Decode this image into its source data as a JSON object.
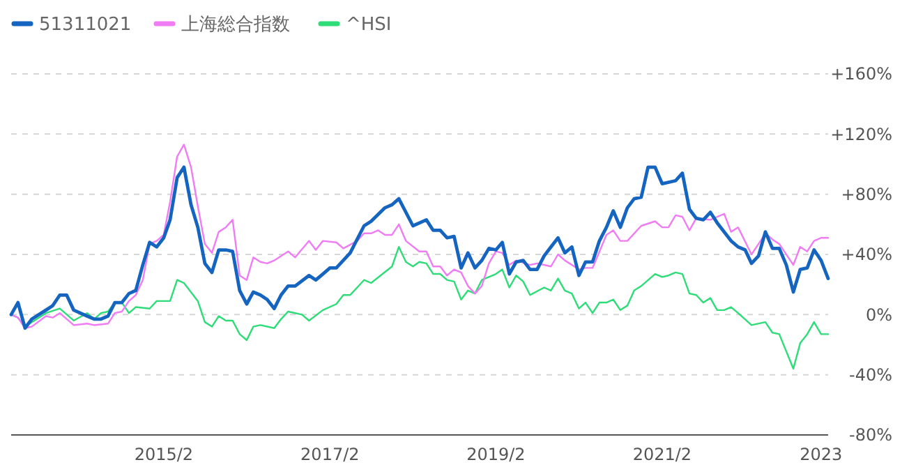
{
  "chart_data": {
    "type": "line",
    "xlim": [
      "2013-04",
      "2023-02"
    ],
    "xticks": [
      {
        "value": "2015-02",
        "label": "2015/2"
      },
      {
        "value": "2017-02",
        "label": "2017/2"
      },
      {
        "value": "2019-02",
        "label": "2019/2"
      },
      {
        "value": "2021-02",
        "label": "2021/2"
      },
      {
        "value": "2023-01",
        "label": "2023"
      }
    ],
    "ylim": [
      -80,
      160
    ],
    "yticks": [
      {
        "value": -80,
        "label": "-80%"
      },
      {
        "value": -40,
        "label": "-40%"
      },
      {
        "value": 0,
        "label": "0%"
      },
      {
        "value": 40,
        "label": "+40%"
      },
      {
        "value": 80,
        "label": "+80%"
      },
      {
        "value": 120,
        "label": "+120%"
      },
      {
        "value": 160,
        "label": "+160%"
      }
    ],
    "grid": "y",
    "legend": "top left",
    "series": [
      {
        "name": "51311021",
        "color": "#1565c0",
        "x": [
          "2013-04",
          "2013-05",
          "2013-06",
          "2013-07",
          "2013-09",
          "2013-10",
          "2013-11",
          "2013-12",
          "2014-01",
          "2014-03",
          "2014-04",
          "2014-05",
          "2014-06",
          "2014-07",
          "2014-08",
          "2014-09",
          "2014-10",
          "2014-11",
          "2014-12",
          "2015-01",
          "2015-02",
          "2015-03",
          "2015-04",
          "2015-05",
          "2015-06",
          "2015-07",
          "2015-08",
          "2015-09",
          "2015-10",
          "2015-11",
          "2015-12",
          "2016-01",
          "2016-02",
          "2016-03",
          "2016-04",
          "2016-05",
          "2016-06",
          "2016-07",
          "2016-08",
          "2016-09",
          "2016-11",
          "2016-12",
          "2017-01",
          "2017-02",
          "2017-03",
          "2017-05",
          "2017-07",
          "2017-08",
          "2017-10",
          "2017-11",
          "2017-12",
          "2018-02",
          "2018-04",
          "2018-05",
          "2018-06",
          "2018-07",
          "2018-08",
          "2018-09",
          "2018-10",
          "2018-11",
          "2018-12",
          "2019-01",
          "2019-02",
          "2019-03",
          "2019-04",
          "2019-05",
          "2019-06",
          "2019-07",
          "2019-08",
          "2019-09",
          "2019-10",
          "2019-11",
          "2019-12",
          "2020-01",
          "2020-02",
          "2020-03",
          "2020-04",
          "2020-05",
          "2020-06",
          "2020-07",
          "2020-08",
          "2020-09",
          "2020-10",
          "2020-11",
          "2020-12",
          "2021-01",
          "2021-02",
          "2021-04",
          "2021-05",
          "2021-06",
          "2021-07",
          "2021-08",
          "2021-09",
          "2021-10",
          "2021-12",
          "2022-01",
          "2022-02",
          "2022-03",
          "2022-04",
          "2022-05",
          "2022-06",
          "2022-07",
          "2022-08",
          "2022-09",
          "2022-10",
          "2022-11",
          "2022-12",
          "2023-01",
          "2023-02"
        ],
        "values": [
          0,
          8,
          -9,
          -3,
          3,
          6,
          13,
          13,
          3,
          -1,
          -3,
          -3,
          -1,
          8,
          8,
          14,
          16,
          33,
          48,
          45,
          51,
          63,
          91,
          98,
          73,
          58,
          34,
          28,
          43,
          43,
          42,
          16,
          7,
          15,
          13,
          10,
          4,
          13,
          19,
          19,
          26,
          23,
          27,
          31,
          31,
          41,
          59,
          62,
          71,
          73,
          77,
          59,
          63,
          56,
          56,
          51,
          52,
          31,
          41,
          31,
          36,
          44,
          43,
          48,
          27,
          35,
          36,
          30,
          30,
          39,
          45,
          51,
          41,
          45,
          26,
          35,
          35,
          49,
          58,
          69,
          58,
          71,
          77,
          78,
          98,
          98,
          87,
          89,
          94,
          70,
          64,
          63,
          68,
          61,
          49,
          45,
          43,
          34,
          39,
          55,
          44,
          44,
          33,
          15,
          30,
          31,
          43,
          36,
          24
        ]
      },
      {
        "name": "上海総合指数",
        "color": "#f07cf4",
        "x": [
          "2013-04",
          "2013-05",
          "2013-06",
          "2013-07",
          "2013-09",
          "2013-10",
          "2013-11",
          "2014-01",
          "2014-03",
          "2014-04",
          "2014-06",
          "2014-07",
          "2014-08",
          "2014-09",
          "2014-10",
          "2014-11",
          "2014-12",
          "2015-01",
          "2015-02",
          "2015-03",
          "2015-04",
          "2015-05",
          "2015-06",
          "2015-07",
          "2015-08",
          "2015-09",
          "2015-10",
          "2015-11",
          "2015-12",
          "2016-01",
          "2016-02",
          "2016-03",
          "2016-04",
          "2016-05",
          "2016-06",
          "2016-08",
          "2016-09",
          "2016-11",
          "2016-12",
          "2017-01",
          "2017-03",
          "2017-04",
          "2017-06",
          "2017-07",
          "2017-08",
          "2017-09",
          "2017-10",
          "2017-11",
          "2017-12",
          "2018-01",
          "2018-03",
          "2018-04",
          "2018-05",
          "2018-06",
          "2018-07",
          "2018-08",
          "2018-09",
          "2018-10",
          "2018-11",
          "2018-12",
          "2019-01",
          "2019-02",
          "2019-03",
          "2019-04",
          "2019-05",
          "2019-07",
          "2019-08",
          "2019-10",
          "2019-11",
          "2019-12",
          "2020-02",
          "2020-03",
          "2020-04",
          "2020-06",
          "2020-07",
          "2020-08",
          "2020-09",
          "2020-11",
          "2021-01",
          "2021-02",
          "2021-03",
          "2021-04",
          "2021-05",
          "2021-06",
          "2021-07",
          "2021-09",
          "2021-11",
          "2021-12",
          "2022-01",
          "2022-03",
          "2022-04",
          "2022-05",
          "2022-06",
          "2022-07",
          "2022-09",
          "2022-10",
          "2022-11",
          "2022-12",
          "2023-01",
          "2023-02"
        ],
        "values": [
          0,
          -2,
          -9,
          -8,
          -1,
          -2,
          1,
          -7,
          -6,
          -7,
          -6,
          1,
          2,
          9,
          13,
          23,
          47,
          49,
          53,
          75,
          105,
          113,
          98,
          72,
          47,
          41,
          55,
          58,
          63,
          26,
          23,
          38,
          35,
          34,
          36,
          42,
          38,
          49,
          43,
          49,
          48,
          44,
          49,
          54,
          54,
          56,
          53,
          53,
          60,
          49,
          42,
          42,
          32,
          32,
          26,
          30,
          28,
          19,
          14,
          19,
          34,
          42,
          41,
          33,
          36,
          33,
          34,
          32,
          40,
          36,
          30,
          31,
          31,
          53,
          56,
          49,
          49,
          59,
          62,
          58,
          58,
          66,
          65,
          56,
          64,
          63,
          67,
          55,
          58,
          40,
          47,
          54,
          50,
          47,
          33,
          45,
          42,
          49,
          51,
          51
        ]
      },
      {
        "name": "^HSI",
        "color": "#2edc78",
        "x": [
          "2013-04",
          "2013-05",
          "2013-06",
          "2013-07",
          "2013-09",
          "2013-11",
          "2014-01",
          "2014-03",
          "2014-04",
          "2014-05",
          "2014-06",
          "2014-07",
          "2014-08",
          "2014-09",
          "2014-10",
          "2014-12",
          "2015-01",
          "2015-03",
          "2015-04",
          "2015-05",
          "2015-07",
          "2015-08",
          "2015-09",
          "2015-10",
          "2015-11",
          "2015-12",
          "2016-01",
          "2016-02",
          "2016-03",
          "2016-04",
          "2016-06",
          "2016-07",
          "2016-08",
          "2016-10",
          "2016-11",
          "2017-01",
          "2017-03",
          "2017-04",
          "2017-05",
          "2017-07",
          "2017-08",
          "2017-11",
          "2017-12",
          "2018-01",
          "2018-02",
          "2018-03",
          "2018-04",
          "2018-05",
          "2018-06",
          "2018-07",
          "2018-08",
          "2018-09",
          "2018-10",
          "2018-11",
          "2018-12",
          "2019-02",
          "2019-03",
          "2019-04",
          "2019-05",
          "2019-06",
          "2019-07",
          "2019-09",
          "2019-10",
          "2019-11",
          "2019-12",
          "2020-01",
          "2020-02",
          "2020-03",
          "2020-04",
          "2020-05",
          "2020-06",
          "2020-07",
          "2020-08",
          "2020-09",
          "2020-10",
          "2020-11",
          "2021-01",
          "2021-02",
          "2021-03",
          "2021-04",
          "2021-05",
          "2021-06",
          "2021-07",
          "2021-08",
          "2021-09",
          "2021-10",
          "2021-11",
          "2021-12",
          "2022-01",
          "2022-03",
          "2022-05",
          "2022-06",
          "2022-07",
          "2022-09",
          "2022-10",
          "2022-11",
          "2022-12",
          "2023-01",
          "2023-02"
        ],
        "values": [
          0,
          -2,
          -8,
          -5,
          1,
          4,
          -4,
          1,
          -3,
          1,
          2,
          8,
          8,
          1,
          5,
          4,
          9,
          9,
          23,
          21,
          9,
          -5,
          -8,
          -1,
          -4,
          -4,
          -13,
          -17,
          -8,
          -7,
          -9,
          -3,
          2,
          0,
          -4,
          3,
          7,
          13,
          13,
          23,
          21,
          32,
          45,
          35,
          32,
          35,
          34,
          27,
          27,
          23,
          22,
          10,
          16,
          14,
          23,
          27,
          30,
          18,
          26,
          22,
          13,
          18,
          16,
          24,
          16,
          14,
          4,
          8,
          1,
          8,
          8,
          10,
          3,
          6,
          16,
          19,
          27,
          25,
          26,
          28,
          27,
          14,
          13,
          8,
          11,
          3,
          3,
          5,
          1,
          -7,
          -5,
          -12,
          -13,
          -36,
          -19,
          -13,
          -5,
          -13,
          -13
        ]
      }
    ]
  }
}
